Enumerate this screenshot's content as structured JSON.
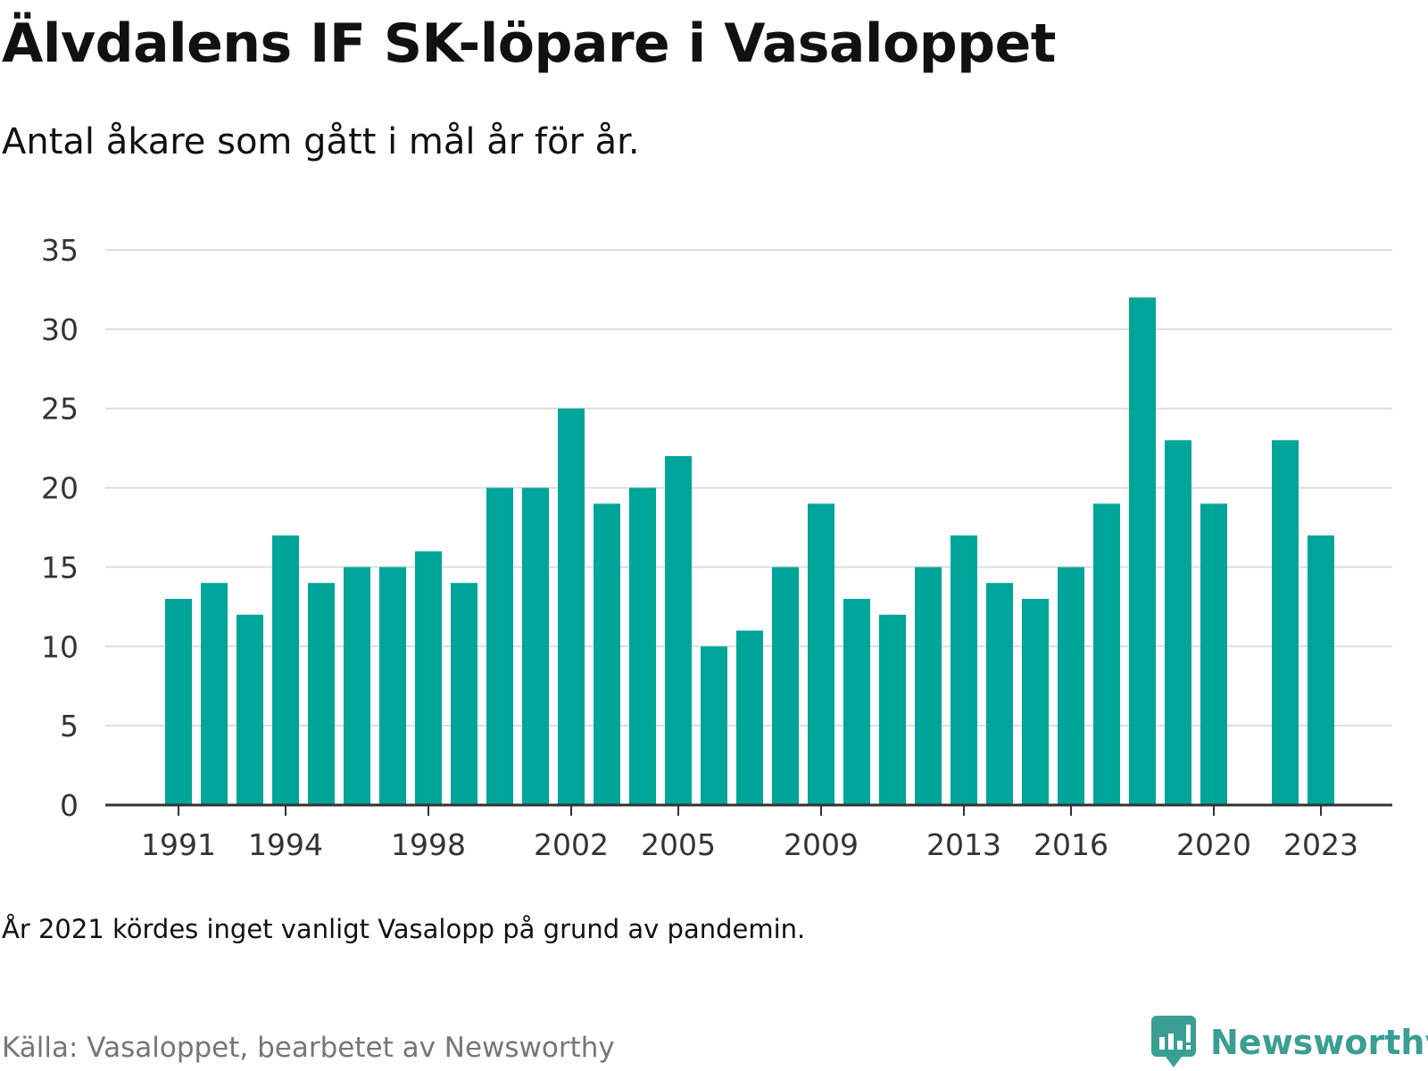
{
  "header": {
    "title": "Älvdalens IF SK-löpare i Vasaloppet",
    "subtitle": "Antal åkare som gått i mål år för år."
  },
  "footer": {
    "note": "År 2021 kördes inget vanligt Vasalopp på grund av pandemin.",
    "source": "Källa: Vasaloppet, bearbetet av Newsworthy",
    "brand": "Newsworthy"
  },
  "colors": {
    "bar": "#00a59a",
    "grid": "#dddddd",
    "axis": "#333333",
    "brand": "#3a9e93"
  },
  "chart_data": {
    "type": "bar",
    "title": "Älvdalens IF SK-löpare i Vasaloppet",
    "subtitle": "Antal åkare som gått i mål år för år.",
    "x": [
      1991,
      1992,
      1993,
      1994,
      1995,
      1996,
      1997,
      1998,
      1999,
      2000,
      2001,
      2002,
      2003,
      2004,
      2005,
      2006,
      2007,
      2008,
      2009,
      2010,
      2011,
      2012,
      2013,
      2014,
      2015,
      2016,
      2017,
      2018,
      2019,
      2020,
      2021,
      2022,
      2023
    ],
    "values": [
      13,
      14,
      12,
      17,
      14,
      15,
      15,
      16,
      14,
      20,
      20,
      25,
      19,
      20,
      22,
      10,
      11,
      15,
      19,
      13,
      12,
      15,
      17,
      14,
      13,
      15,
      19,
      32,
      23,
      19,
      null,
      23,
      17
    ],
    "x_ticks": [
      "1991",
      "1994",
      "1998",
      "2002",
      "2005",
      "2009",
      "2013",
      "2016",
      "2020",
      "2023"
    ],
    "y_ticks": [
      0,
      5,
      10,
      15,
      20,
      25,
      30,
      35
    ],
    "ylim": [
      0,
      35
    ],
    "grid": true,
    "legend": "none"
  }
}
